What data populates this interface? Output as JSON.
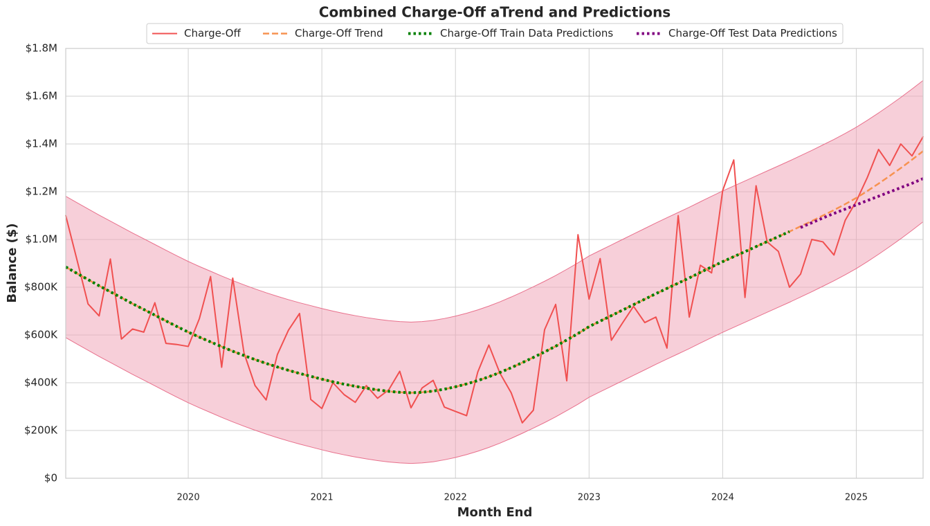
{
  "chart_data": {
    "type": "line",
    "title": "Combined Charge-Off aTrend and Predictions",
    "x_label": "Month End",
    "y_label": "Balance ($)",
    "x": [
      2019.083,
      2019.167,
      2019.25,
      2019.333,
      2019.417,
      2019.5,
      2019.583,
      2019.667,
      2019.75,
      2019.833,
      2019.917,
      2020,
      2020.083,
      2020.167,
      2020.25,
      2020.333,
      2020.417,
      2020.5,
      2020.583,
      2020.667,
      2020.75,
      2020.833,
      2020.917,
      2021,
      2021.083,
      2021.167,
      2021.25,
      2021.333,
      2021.417,
      2021.5,
      2021.583,
      2021.667,
      2021.75,
      2021.833,
      2021.917,
      2022,
      2022.083,
      2022.167,
      2022.25,
      2022.333,
      2022.417,
      2022.5,
      2022.583,
      2022.667,
      2022.75,
      2022.833,
      2022.917,
      2023,
      2023.083,
      2023.167,
      2023.25,
      2023.333,
      2023.417,
      2023.5,
      2023.583,
      2023.667,
      2023.75,
      2023.833,
      2023.917,
      2024,
      2024.083,
      2024.167,
      2024.25,
      2024.333,
      2024.417,
      2024.5,
      2024.583,
      2024.667,
      2024.75,
      2024.833,
      2024.917,
      2025,
      2025.083,
      2025.167,
      2025.25,
      2025.333,
      2025.417,
      2025.5
    ],
    "xlim": [
      2019.083,
      2025.5
    ],
    "xticks": [
      2020,
      2021,
      2022,
      2023,
      2024,
      2025
    ],
    "ylim": [
      0,
      1800000
    ],
    "yticks": [
      {
        "value": 0,
        "label": "$0"
      },
      {
        "value": 200000,
        "label": "$200K"
      },
      {
        "value": 400000,
        "label": "$400K"
      },
      {
        "value": 600000,
        "label": "$600K"
      },
      {
        "value": 800000,
        "label": "$800K"
      },
      {
        "value": 1000000,
        "label": "$1.0M"
      },
      {
        "value": 1200000,
        "label": "$1.2M"
      },
      {
        "value": 1400000,
        "label": "$1.4M"
      },
      {
        "value": 1600000,
        "label": "$1.6M"
      },
      {
        "value": 1800000,
        "label": "$1.8M"
      }
    ],
    "grid": true,
    "legend": "upper center",
    "band": {
      "color": "#f0a0b4",
      "edge": "#e8708c",
      "upper": [
        1181000,
        1154000,
        1128000,
        1102000,
        1077000,
        1052000,
        1027000,
        1003000,
        979000,
        955000,
        931000,
        908000,
        887000,
        867000,
        847000,
        828000,
        810000,
        793000,
        777000,
        762000,
        748000,
        735000,
        723000,
        711000,
        700000,
        690000,
        681000,
        673000,
        666000,
        660000,
        656000,
        654000,
        656000,
        661000,
        669000,
        679000,
        691000,
        705000,
        721000,
        739000,
        759000,
        780000,
        802000,
        825000,
        849000,
        875000,
        902000,
        931000,
        954000,
        977000,
        1000000,
        1023000,
        1046000,
        1069000,
        1091000,
        1113000,
        1135000,
        1158000,
        1181000,
        1203000,
        1224000,
        1245000,
        1266000,
        1287000,
        1308000,
        1329000,
        1351000,
        1373000,
        1396000,
        1419000,
        1444000,
        1470000,
        1499000,
        1530000,
        1562000,
        1595000,
        1630000,
        1666000
      ],
      "lower": [
        589000,
        562000,
        536000,
        510000,
        485000,
        460000,
        435000,
        411000,
        387000,
        363000,
        339000,
        316000,
        295000,
        275000,
        255000,
        236000,
        218000,
        201000,
        185000,
        170000,
        156000,
        143000,
        131000,
        119000,
        108000,
        98000,
        89000,
        81000,
        74000,
        68000,
        64000,
        62000,
        64000,
        69000,
        77000,
        87000,
        99000,
        113000,
        129000,
        147000,
        167000,
        188000,
        210000,
        233000,
        257000,
        283000,
        310000,
        339000,
        362000,
        385000,
        408000,
        431000,
        454000,
        477000,
        499000,
        521000,
        543000,
        566000,
        589000,
        611000,
        632000,
        653000,
        674000,
        695000,
        716000,
        737000,
        759000,
        781000,
        804000,
        827000,
        852000,
        878000,
        907000,
        938000,
        970000,
        1003000,
        1038000,
        1074000
      ]
    },
    "series": [
      {
        "name": "Charge-Off",
        "color": "#f05050",
        "style": "solid",
        "values": [
          1100000,
          915000,
          730000,
          680000,
          918000,
          583000,
          625000,
          612000,
          735000,
          565000,
          560000,
          552000,
          668000,
          845000,
          465000,
          838000,
          525000,
          388000,
          328000,
          518000,
          620000,
          690000,
          330000,
          292000,
          400000,
          350000,
          318000,
          388000,
          335000,
          370000,
          448000,
          295000,
          378000,
          410000,
          298000,
          280000,
          262000,
          445000,
          558000,
          440000,
          358000,
          232000,
          285000,
          622000,
          728000,
          408000,
          1020000,
          750000,
          920000,
          578000,
          650000,
          720000,
          652000,
          675000,
          545000,
          1100000,
          675000,
          892000,
          860000,
          1205000,
          1333000,
          757000,
          1225000,
          990000,
          950000,
          800000,
          855000,
          1000000,
          990000,
          935000,
          1080000,
          1160000,
          1260000,
          1377000,
          1310000,
          1400000,
          1350000,
          1430000
        ]
      },
      {
        "name": "Charge-Off Trend",
        "color": "#f79250",
        "style": "dashed",
        "values": [
          885000,
          858000,
          832000,
          806000,
          781000,
          756000,
          731000,
          707000,
          683000,
          659000,
          635000,
          612000,
          591000,
          571000,
          551000,
          532000,
          514000,
          497000,
          481000,
          466000,
          452000,
          439000,
          427000,
          415000,
          404000,
          394000,
          385000,
          377000,
          370000,
          364000,
          360000,
          358000,
          360000,
          365000,
          373000,
          383000,
          395000,
          409000,
          425000,
          443000,
          463000,
          484000,
          506000,
          529000,
          553000,
          579000,
          606000,
          635000,
          658000,
          681000,
          704000,
          727000,
          750000,
          773000,
          795000,
          817000,
          839000,
          862000,
          885000,
          907000,
          928000,
          949000,
          970000,
          991000,
          1012000,
          1033000,
          1055000,
          1077000,
          1100000,
          1123000,
          1148000,
          1174000,
          1203000,
          1234000,
          1266000,
          1299000,
          1334000,
          1370000
        ]
      },
      {
        "name": "Charge-Off Train Data Predictions",
        "color": "#008000",
        "style": "dotted",
        "values": [
          885000,
          858000,
          832000,
          806000,
          781000,
          756000,
          731000,
          707000,
          683000,
          659000,
          635000,
          612000,
          591000,
          571000,
          551000,
          532000,
          514000,
          497000,
          481000,
          466000,
          452000,
          439000,
          427000,
          415000,
          404000,
          394000,
          385000,
          377000,
          370000,
          364000,
          360000,
          358000,
          360000,
          365000,
          373000,
          383000,
          395000,
          409000,
          425000,
          443000,
          463000,
          484000,
          506000,
          529000,
          553000,
          579000,
          606000,
          635000,
          658000,
          681000,
          704000,
          727000,
          750000,
          773000,
          795000,
          817000,
          839000,
          862000,
          885000,
          907000,
          928000,
          949000,
          970000,
          991000,
          1012000,
          1033000,
          null,
          null,
          null,
          null,
          null,
          null,
          null,
          null,
          null,
          null,
          null,
          null
        ]
      },
      {
        "name": "Charge-Off Test Data Predictions",
        "color": "#800080",
        "style": "dotted",
        "values": [
          null,
          null,
          null,
          null,
          null,
          null,
          null,
          null,
          null,
          null,
          null,
          null,
          null,
          null,
          null,
          null,
          null,
          null,
          null,
          null,
          null,
          null,
          null,
          null,
          null,
          null,
          null,
          null,
          null,
          null,
          null,
          null,
          null,
          null,
          null,
          null,
          null,
          null,
          null,
          null,
          null,
          null,
          null,
          null,
          null,
          null,
          null,
          null,
          null,
          null,
          null,
          null,
          null,
          null,
          null,
          null,
          null,
          null,
          null,
          null,
          null,
          null,
          null,
          null,
          null,
          null,
          1050000,
          1070000,
          1090000,
          1109000,
          1127000,
          1145000,
          1163000,
          1181000,
          1199000,
          1217000,
          1235000,
          1255000
        ]
      }
    ]
  }
}
